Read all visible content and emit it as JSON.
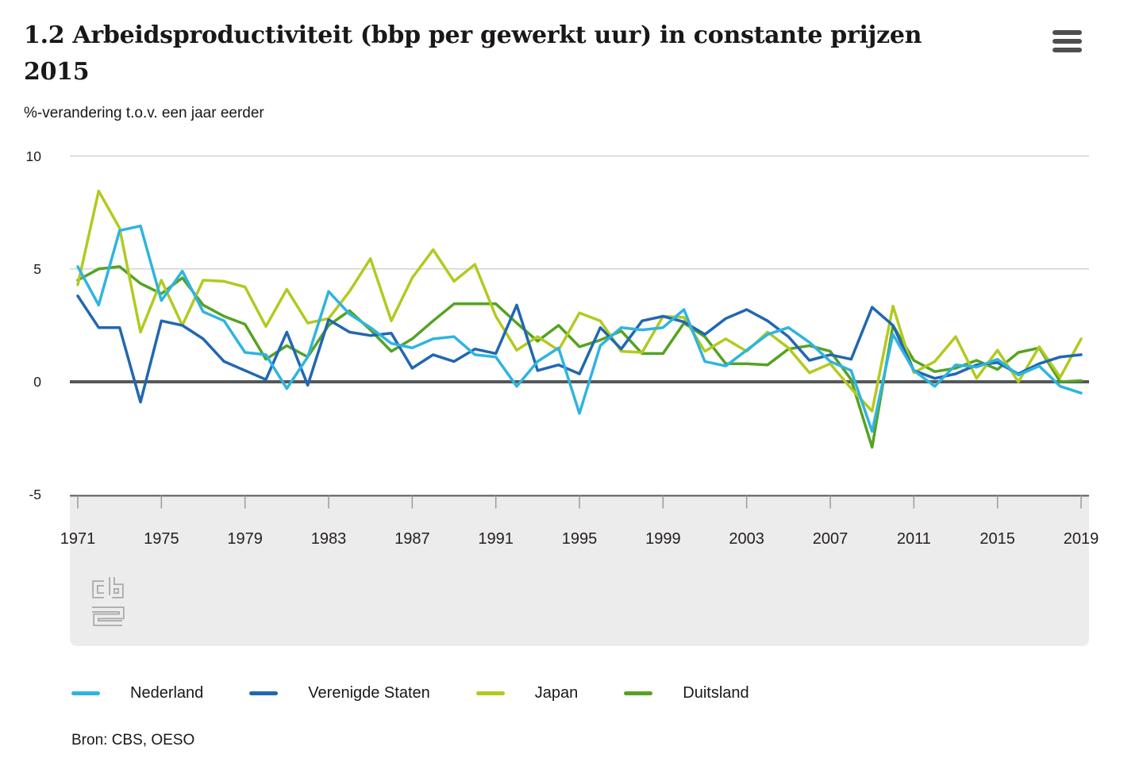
{
  "header": {
    "title": "1.2 Arbeidsproductiviteit (bbp per gewerkt uur) in constante prijzen 2015",
    "subtitle": "%-verandering t.o.v. een jaar eerder",
    "menu_icon": "hamburger-menu-icon"
  },
  "source": {
    "text": "Bron: CBS, OESO"
  },
  "colors": {
    "nederland": "#2fb4e0",
    "verenigde_staten": "#2167b1",
    "japan": "#b2ca20",
    "duitsland": "#54a321",
    "zero_line": "#55585a",
    "gridline": "#d4d4d4",
    "band": "#ececec",
    "tick": "#9b9b9b",
    "text": "#1a1717",
    "menu_icon": "#4f4f4f"
  },
  "chart_data": {
    "type": "line",
    "title": "1.2 Arbeidsproductiviteit (bbp per gewerkt uur) in constante prijzen 2015",
    "ylabel": "%-verandering t.o.v. een jaar eerder",
    "ylim": [
      -5,
      10
    ],
    "y_ticks": [
      10,
      5,
      0,
      -5
    ],
    "grid": "horizontal",
    "legend_position": "bottom",
    "x_tick_years": [
      1971,
      1975,
      1979,
      1983,
      1987,
      1991,
      1995,
      1999,
      2003,
      2007,
      2011,
      2015,
      2019
    ],
    "years": [
      1971,
      1972,
      1973,
      1974,
      1975,
      1976,
      1977,
      1978,
      1979,
      1980,
      1981,
      1982,
      1983,
      1984,
      1985,
      1986,
      1987,
      1988,
      1989,
      1990,
      1991,
      1992,
      1993,
      1994,
      1995,
      1996,
      1997,
      1998,
      1999,
      2000,
      2001,
      2002,
      2003,
      2004,
      2005,
      2006,
      2007,
      2008,
      2009,
      2010,
      2011,
      2012,
      2013,
      2014,
      2015,
      2016,
      2017,
      2018,
      2019
    ],
    "series": [
      {
        "name": "Nederland",
        "color": "#2fb4e0",
        "values": [
          5.1,
          3.4,
          6.7,
          6.9,
          3.6,
          4.9,
          3.1,
          2.7,
          1.3,
          1.2,
          -0.3,
          1.1,
          4.0,
          3.0,
          2.4,
          1.7,
          1.5,
          1.9,
          2.0,
          1.2,
          1.1,
          -0.2,
          0.9,
          1.5,
          -1.4,
          1.6,
          2.4,
          2.3,
          2.4,
          3.2,
          0.9,
          0.7,
          1.4,
          2.1,
          2.4,
          1.75,
          0.9,
          0.5,
          -2.2,
          2.1,
          0.5,
          -0.2,
          0.75,
          0.65,
          1.0,
          0.3,
          0.7,
          -0.2,
          -0.5
        ]
      },
      {
        "name": "Verenigde Staten",
        "color": "#2167b1",
        "values": [
          3.8,
          2.4,
          2.4,
          -0.9,
          2.7,
          2.5,
          1.9,
          0.9,
          0.5,
          0.1,
          2.2,
          -0.15,
          2.75,
          2.2,
          2.05,
          2.15,
          0.6,
          1.2,
          0.9,
          1.45,
          1.25,
          3.4,
          0.5,
          0.75,
          0.35,
          2.4,
          1.45,
          2.7,
          2.9,
          2.65,
          2.1,
          2.8,
          3.2,
          2.7,
          2.0,
          0.95,
          1.2,
          1.0,
          3.3,
          2.5,
          0.5,
          0.15,
          0.35,
          0.75,
          0.85,
          0.35,
          0.8,
          1.1,
          1.2
        ]
      },
      {
        "name": "Japan",
        "color": "#b2ca20",
        "values": [
          4.3,
          8.45,
          6.8,
          2.2,
          4.5,
          2.5,
          4.5,
          4.45,
          4.2,
          2.45,
          4.1,
          2.6,
          2.8,
          4.0,
          5.45,
          2.7,
          4.6,
          5.85,
          4.45,
          5.2,
          2.9,
          1.4,
          2.0,
          1.4,
          3.05,
          2.7,
          1.35,
          1.3,
          2.9,
          2.85,
          1.35,
          1.9,
          1.35,
          2.2,
          1.5,
          0.4,
          0.8,
          -0.3,
          -1.3,
          3.35,
          0.4,
          0.9,
          2.0,
          0.15,
          1.4,
          0.0,
          1.55,
          0.2,
          1.9
        ]
      },
      {
        "name": "Duitsland",
        "color": "#54a321",
        "values": [
          4.5,
          5.0,
          5.1,
          4.35,
          3.9,
          4.6,
          3.4,
          2.9,
          2.55,
          1.0,
          1.6,
          1.1,
          2.5,
          3.15,
          2.3,
          1.35,
          1.9,
          2.7,
          3.45,
          3.45,
          3.45,
          2.6,
          1.8,
          2.5,
          1.55,
          1.85,
          2.25,
          1.25,
          1.25,
          2.6,
          2.0,
          0.8,
          0.8,
          0.75,
          1.45,
          1.6,
          1.35,
          0.1,
          -2.9,
          2.5,
          0.95,
          0.45,
          0.6,
          0.95,
          0.55,
          1.3,
          1.5,
          0.0,
          0.05
        ]
      }
    ]
  }
}
